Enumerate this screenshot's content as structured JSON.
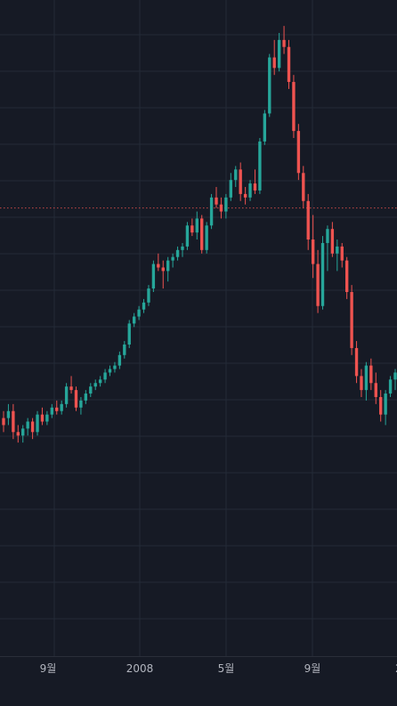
{
  "chart_data": {
    "type": "candlestick",
    "x_ticks": [
      "9월",
      "2008",
      "5월",
      "9월",
      "2"
    ],
    "y_range": [
      0,
      100
    ],
    "grid": true,
    "colors": {
      "background": "#161a25",
      "grid": "#242a37",
      "up": "#26a69a",
      "down": "#ef5350",
      "price_line": "#ef5350",
      "axis_text": "#b2b5be"
    },
    "price_line_value": 64,
    "candles": [
      {
        "o": 34,
        "h": 35,
        "l": 32,
        "c": 33
      },
      {
        "o": 34,
        "h": 36,
        "l": 33,
        "c": 35
      },
      {
        "o": 35,
        "h": 36,
        "l": 31,
        "c": 32
      },
      {
        "o": 32,
        "h": 33,
        "l": 30.5,
        "c": 31.5
      },
      {
        "o": 31.5,
        "h": 33,
        "l": 30.5,
        "c": 32.5
      },
      {
        "o": 32.5,
        "h": 34,
        "l": 31.5,
        "c": 33.5
      },
      {
        "o": 33.5,
        "h": 34,
        "l": 31,
        "c": 32
      },
      {
        "o": 32,
        "h": 35,
        "l": 31.5,
        "c": 34.5
      },
      {
        "o": 34.5,
        "h": 35.5,
        "l": 33,
        "c": 33.5
      },
      {
        "o": 33.5,
        "h": 35,
        "l": 33,
        "c": 34.5
      },
      {
        "o": 34.5,
        "h": 36,
        "l": 34,
        "c": 35.5
      },
      {
        "o": 35.5,
        "h": 36.5,
        "l": 34.5,
        "c": 35
      },
      {
        "o": 35,
        "h": 36.5,
        "l": 34.5,
        "c": 36
      },
      {
        "o": 36,
        "h": 39,
        "l": 35.5,
        "c": 38.5
      },
      {
        "o": 38.5,
        "h": 40,
        "l": 37.5,
        "c": 38
      },
      {
        "o": 38,
        "h": 38.5,
        "l": 35,
        "c": 35.5
      },
      {
        "o": 35.5,
        "h": 37,
        "l": 34.5,
        "c": 36.5
      },
      {
        "o": 36.5,
        "h": 38,
        "l": 36,
        "c": 37.5
      },
      {
        "o": 37.5,
        "h": 39,
        "l": 37,
        "c": 38.5
      },
      {
        "o": 38.5,
        "h": 39.5,
        "l": 38,
        "c": 39
      },
      {
        "o": 39,
        "h": 40,
        "l": 38.5,
        "c": 39.5
      },
      {
        "o": 39.5,
        "h": 41,
        "l": 39,
        "c": 40.5
      },
      {
        "o": 40.5,
        "h": 41.5,
        "l": 40,
        "c": 41
      },
      {
        "o": 41,
        "h": 42,
        "l": 40.5,
        "c": 41.5
      },
      {
        "o": 41.5,
        "h": 43.5,
        "l": 41,
        "c": 43
      },
      {
        "o": 43,
        "h": 45,
        "l": 42.5,
        "c": 44.5
      },
      {
        "o": 44.5,
        "h": 48,
        "l": 44,
        "c": 47.5
      },
      {
        "o": 47.5,
        "h": 49,
        "l": 47,
        "c": 48.5
      },
      {
        "o": 48.5,
        "h": 50,
        "l": 48,
        "c": 49.5
      },
      {
        "o": 49.5,
        "h": 51,
        "l": 49,
        "c": 50.5
      },
      {
        "o": 50.5,
        "h": 53,
        "l": 50,
        "c": 52.5
      },
      {
        "o": 52.5,
        "h": 56.5,
        "l": 52,
        "c": 56
      },
      {
        "o": 56,
        "h": 57.5,
        "l": 55,
        "c": 55.5
      },
      {
        "o": 55.5,
        "h": 56.5,
        "l": 52.5,
        "c": 55
      },
      {
        "o": 55,
        "h": 57,
        "l": 53.5,
        "c": 56.5
      },
      {
        "o": 56.5,
        "h": 57.5,
        "l": 55.5,
        "c": 57
      },
      {
        "o": 57,
        "h": 58.5,
        "l": 56.5,
        "c": 58
      },
      {
        "o": 58,
        "h": 59,
        "l": 57,
        "c": 58.5
      },
      {
        "o": 58.5,
        "h": 62,
        "l": 58,
        "c": 61.5
      },
      {
        "o": 61.5,
        "h": 62.5,
        "l": 60,
        "c": 60.5
      },
      {
        "o": 60.5,
        "h": 63.5,
        "l": 59.5,
        "c": 62.5
      },
      {
        "o": 62.5,
        "h": 63,
        "l": 57.5,
        "c": 58
      },
      {
        "o": 58,
        "h": 62,
        "l": 57.5,
        "c": 61.5
      },
      {
        "o": 61.5,
        "h": 66,
        "l": 61,
        "c": 65.5
      },
      {
        "o": 65.5,
        "h": 67,
        "l": 64,
        "c": 64.5
      },
      {
        "o": 64.5,
        "h": 65.5,
        "l": 62.5,
        "c": 63.5
      },
      {
        "o": 63.5,
        "h": 66,
        "l": 62.5,
        "c": 65.5
      },
      {
        "o": 65.5,
        "h": 69,
        "l": 65,
        "c": 68
      },
      {
        "o": 68,
        "h": 70,
        "l": 67,
        "c": 69.5
      },
      {
        "o": 69.5,
        "h": 70.5,
        "l": 65,
        "c": 66
      },
      {
        "o": 66,
        "h": 67,
        "l": 64.5,
        "c": 65.5
      },
      {
        "o": 65.5,
        "h": 68,
        "l": 65,
        "c": 67.5
      },
      {
        "o": 67.5,
        "h": 69.5,
        "l": 66,
        "c": 66.5
      },
      {
        "o": 66.5,
        "h": 74,
        "l": 66,
        "c": 73.5
      },
      {
        "o": 73.5,
        "h": 78,
        "l": 73,
        "c": 77.5
      },
      {
        "o": 77.5,
        "h": 86,
        "l": 77,
        "c": 85.5
      },
      {
        "o": 85.5,
        "h": 88,
        "l": 83,
        "c": 84
      },
      {
        "o": 84,
        "h": 89,
        "l": 83.5,
        "c": 88
      },
      {
        "o": 88,
        "h": 90,
        "l": 86,
        "c": 87
      },
      {
        "o": 87,
        "h": 88,
        "l": 81,
        "c": 82
      },
      {
        "o": 82,
        "h": 83,
        "l": 74,
        "c": 75
      },
      {
        "o": 75,
        "h": 76,
        "l": 68,
        "c": 69
      },
      {
        "o": 69,
        "h": 70,
        "l": 64,
        "c": 65
      },
      {
        "o": 65,
        "h": 66,
        "l": 58,
        "c": 59.5
      },
      {
        "o": 59.5,
        "h": 63,
        "l": 54,
        "c": 56
      },
      {
        "o": 56,
        "h": 58,
        "l": 49,
        "c": 50
      },
      {
        "o": 50,
        "h": 60,
        "l": 49.5,
        "c": 59
      },
      {
        "o": 59,
        "h": 61.5,
        "l": 55,
        "c": 61
      },
      {
        "o": 61,
        "h": 62,
        "l": 57,
        "c": 57.5
      },
      {
        "o": 57.5,
        "h": 59.5,
        "l": 55,
        "c": 58.5
      },
      {
        "o": 58.5,
        "h": 59,
        "l": 55.5,
        "c": 56.5
      },
      {
        "o": 56.5,
        "h": 57,
        "l": 51,
        "c": 52
      },
      {
        "o": 52,
        "h": 53,
        "l": 43,
        "c": 44
      },
      {
        "o": 44,
        "h": 45,
        "l": 39,
        "c": 40
      },
      {
        "o": 40,
        "h": 41,
        "l": 37,
        "c": 38
      },
      {
        "o": 38,
        "h": 42,
        "l": 36.5,
        "c": 41.5
      },
      {
        "o": 41.5,
        "h": 42.5,
        "l": 38,
        "c": 39
      },
      {
        "o": 39,
        "h": 40.5,
        "l": 36,
        "c": 37
      },
      {
        "o": 37,
        "h": 38,
        "l": 33.5,
        "c": 34.5
      },
      {
        "o": 34.5,
        "h": 38,
        "l": 33,
        "c": 37.5
      },
      {
        "o": 37.5,
        "h": 40,
        "l": 37,
        "c": 39.5
      },
      {
        "o": 39.5,
        "h": 41,
        "l": 38,
        "c": 40.5
      }
    ]
  }
}
